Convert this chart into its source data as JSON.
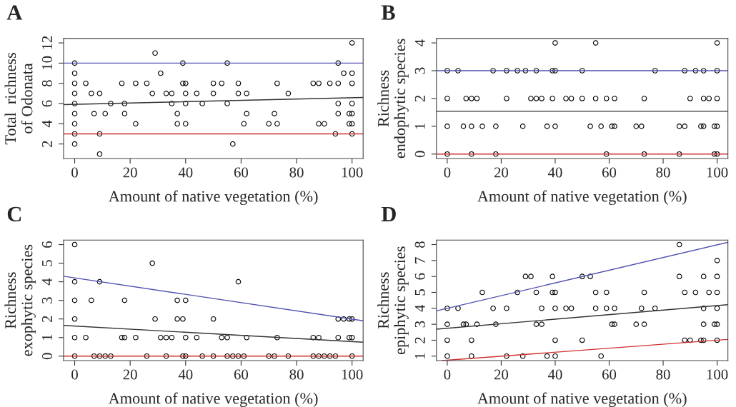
{
  "chart_data": [
    {
      "type": "scatter",
      "title": "A",
      "xlabel": "Amount of native vegetation (%)",
      "ylabel": "Total  richness\nof Odonata",
      "xlim": [
        -4,
        104
      ],
      "ylim": [
        0.56,
        12.44
      ],
      "xticks": [
        0,
        20,
        40,
        60,
        80,
        100
      ],
      "yticks": [
        2,
        4,
        6,
        8,
        10,
        12
      ],
      "grid": false,
      "legend": false,
      "series": [
        {
          "type": "scatter",
          "marker": "circle",
          "color": "#000000",
          "x": [
            0,
            0,
            0,
            0,
            0,
            0,
            0,
            0,
            0,
            4,
            6,
            7,
            9,
            9,
            9,
            11,
            13,
            17,
            18,
            18,
            22,
            22,
            26,
            28,
            29,
            31,
            33,
            35,
            35,
            37,
            37,
            39,
            39,
            40,
            40,
            40,
            40,
            44,
            46,
            50,
            50,
            53,
            55,
            55,
            57,
            59,
            59,
            61,
            62,
            62,
            70,
            72,
            73,
            73,
            77,
            86,
            88,
            88,
            90,
            92,
            94,
            95,
            95,
            95,
            95,
            97,
            99,
            99,
            100,
            100,
            100,
            100,
            100,
            100,
            100
          ],
          "values": [
            10,
            9,
            8,
            7,
            6,
            5,
            4,
            3,
            2,
            8,
            7,
            5,
            7,
            3,
            1,
            5,
            6,
            8,
            6,
            5,
            8,
            4,
            8,
            7,
            11,
            9,
            7,
            7,
            6,
            5,
            4,
            10,
            8,
            8,
            7,
            6,
            4,
            7,
            6,
            8,
            7,
            8,
            10,
            6,
            2,
            8,
            7,
            4,
            7,
            5,
            4,
            5,
            8,
            4,
            7,
            8,
            8,
            4,
            4,
            8,
            3,
            10,
            8,
            6,
            5,
            9,
            5,
            4,
            12,
            9,
            8,
            6,
            5,
            4,
            3
          ]
        },
        {
          "type": "line",
          "color": "#5050b0",
          "x": [
            -4,
            104
          ],
          "values": [
            10,
            10
          ]
        },
        {
          "type": "line",
          "color": "#333333",
          "x": [
            -4,
            104
          ],
          "values": [
            5.9,
            6.6
          ]
        },
        {
          "type": "line",
          "color": "#d03030",
          "x": [
            -4,
            104
          ],
          "values": [
            3,
            3
          ]
        }
      ]
    },
    {
      "type": "scatter",
      "title": "B",
      "xlabel": "Amount of native vegetation (%)",
      "ylabel": "Richness\nendophytic species",
      "xlim": [
        -4,
        104
      ],
      "ylim": [
        -0.16,
        4.16
      ],
      "xticks": [
        0,
        20,
        40,
        60,
        80,
        100
      ],
      "yticks": [
        0,
        1,
        2,
        3,
        4
      ],
      "grid": false,
      "legend": false,
      "series": [
        {
          "type": "scatter",
          "marker": "circle",
          "color": "#000000",
          "x": [
            40,
            55,
            100,
            0,
            4,
            17,
            22,
            26,
            29,
            33,
            39,
            40,
            50,
            77,
            88,
            92,
            95,
            100,
            0,
            7,
            9,
            11,
            22,
            31,
            33,
            35,
            39,
            44,
            46,
            50,
            55,
            59,
            62,
            73,
            90,
            95,
            97,
            100,
            0,
            6,
            9,
            13,
            18,
            28,
            37,
            40,
            53,
            57,
            61,
            62,
            70,
            72,
            86,
            88,
            94,
            95,
            99,
            100,
            0,
            9,
            18,
            59,
            73,
            86,
            99,
            100
          ],
          "values": [
            4,
            4,
            4,
            3,
            3,
            3,
            3,
            3,
            3,
            3,
            3,
            3,
            3,
            3,
            3,
            3,
            3,
            3,
            2,
            2,
            2,
            2,
            2,
            2,
            2,
            2,
            2,
            2,
            2,
            2,
            2,
            2,
            2,
            2,
            2,
            2,
            2,
            2,
            1,
            1,
            1,
            1,
            1,
            1,
            1,
            1,
            1,
            1,
            1,
            1,
            1,
            1,
            1,
            1,
            1,
            1,
            1,
            1,
            0,
            0,
            0,
            0,
            0,
            0,
            0,
            0
          ]
        },
        {
          "type": "line",
          "color": "#5050b0",
          "x": [
            -4,
            104
          ],
          "values": [
            3,
            3
          ]
        },
        {
          "type": "line",
          "color": "#333333",
          "x": [
            -4,
            104
          ],
          "values": [
            1.54,
            1.54
          ]
        },
        {
          "type": "line",
          "color": "#d03030",
          "x": [
            -4,
            104
          ],
          "values": [
            0,
            0
          ]
        }
      ]
    },
    {
      "type": "scatter",
      "title": "C",
      "xlabel": "Amount of native vegetation (%)",
      "ylabel": "Richness\nexophytic species",
      "xlim": [
        -4,
        104
      ],
      "ylim": [
        -0.24,
        6.24
      ],
      "xticks": [
        0,
        20,
        40,
        60,
        80,
        100
      ],
      "yticks": [
        0,
        1,
        2,
        3,
        4,
        5,
        6
      ],
      "grid": false,
      "legend": false,
      "series": [
        {
          "type": "scatter",
          "marker": "circle",
          "color": "#000000",
          "x": [
            0,
            0,
            0,
            0,
            0,
            0,
            4,
            6,
            7,
            9,
            9,
            11,
            13,
            17,
            18,
            18,
            22,
            26,
            28,
            29,
            31,
            33,
            33,
            35,
            37,
            37,
            39,
            39,
            40,
            40,
            40,
            44,
            46,
            50,
            50,
            53,
            55,
            55,
            57,
            59,
            59,
            61,
            62,
            70,
            72,
            73,
            77,
            86,
            86,
            88,
            88,
            90,
            92,
            94,
            95,
            95,
            97,
            99,
            99,
            100,
            100,
            100
          ],
          "values": [
            6,
            4,
            3,
            2,
            1,
            0,
            1,
            3,
            0,
            4,
            0,
            0,
            0,
            1,
            1,
            3,
            1,
            0,
            5,
            2,
            1,
            1,
            0,
            1,
            3,
            2,
            2,
            0,
            3,
            1,
            0,
            1,
            0,
            2,
            0,
            1,
            1,
            0,
            0,
            4,
            0,
            0,
            1,
            0,
            0,
            1,
            0,
            1,
            0,
            1,
            0,
            0,
            0,
            0,
            2,
            1,
            2,
            2,
            1,
            2,
            1,
            0
          ]
        },
        {
          "type": "line",
          "color": "#5050b0",
          "x": [
            -4,
            104
          ],
          "values": [
            4.3,
            1.9
          ]
        },
        {
          "type": "line",
          "color": "#333333",
          "x": [
            -4,
            104
          ],
          "values": [
            1.65,
            0.75
          ]
        },
        {
          "type": "line",
          "color": "#d03030",
          "x": [
            -4,
            104
          ],
          "values": [
            0,
            0
          ]
        }
      ]
    },
    {
      "type": "scatter",
      "title": "D",
      "xlabel": "Amount of native vegetation (%)",
      "ylabel": "Richness\nepiphytic species",
      "xlim": [
        -4,
        104
      ],
      "ylim": [
        0.72,
        8.28
      ],
      "xticks": [
        0,
        20,
        40,
        60,
        80,
        100
      ],
      "yticks": [
        1,
        2,
        3,
        4,
        5,
        6,
        7,
        8
      ],
      "grid": false,
      "legend": false,
      "series": [
        {
          "type": "scatter",
          "marker": "circle",
          "color": "#000000",
          "x": [
            0,
            0,
            0,
            0,
            4,
            6,
            7,
            9,
            9,
            11,
            13,
            17,
            18,
            22,
            22,
            26,
            28,
            29,
            31,
            33,
            33,
            35,
            35,
            37,
            39,
            39,
            40,
            40,
            40,
            40,
            44,
            46,
            50,
            50,
            53,
            55,
            55,
            57,
            59,
            59,
            61,
            62,
            62,
            70,
            72,
            73,
            73,
            77,
            86,
            86,
            88,
            88,
            90,
            92,
            94,
            95,
            95,
            95,
            95,
            97,
            99,
            100,
            100,
            100,
            100,
            100,
            100
          ],
          "values": [
            4,
            3,
            2,
            1,
            4,
            3,
            3,
            2,
            1,
            3,
            5,
            4,
            3,
            4,
            1,
            5,
            1,
            6,
            6,
            5,
            3,
            4,
            3,
            1,
            6,
            5,
            5,
            4,
            2,
            1,
            4,
            4,
            6,
            2,
            6,
            5,
            4,
            1,
            5,
            4,
            3,
            4,
            3,
            3,
            4,
            5,
            3,
            4,
            8,
            6,
            5,
            2,
            2,
            5,
            2,
            6,
            4,
            3,
            2,
            5,
            3,
            7,
            6,
            5,
            4,
            3,
            2
          ]
        },
        {
          "type": "line",
          "color": "#5050b0",
          "x": [
            -4,
            104
          ],
          "values": [
            3.84,
            8.14
          ]
        },
        {
          "type": "line",
          "color": "#333333",
          "x": [
            -4,
            104
          ],
          "values": [
            2.69,
            4.23
          ]
        },
        {
          "type": "line",
          "color": "#d03030",
          "x": [
            -2,
            104
          ],
          "values": [
            0.72,
            2.05
          ]
        }
      ]
    }
  ]
}
